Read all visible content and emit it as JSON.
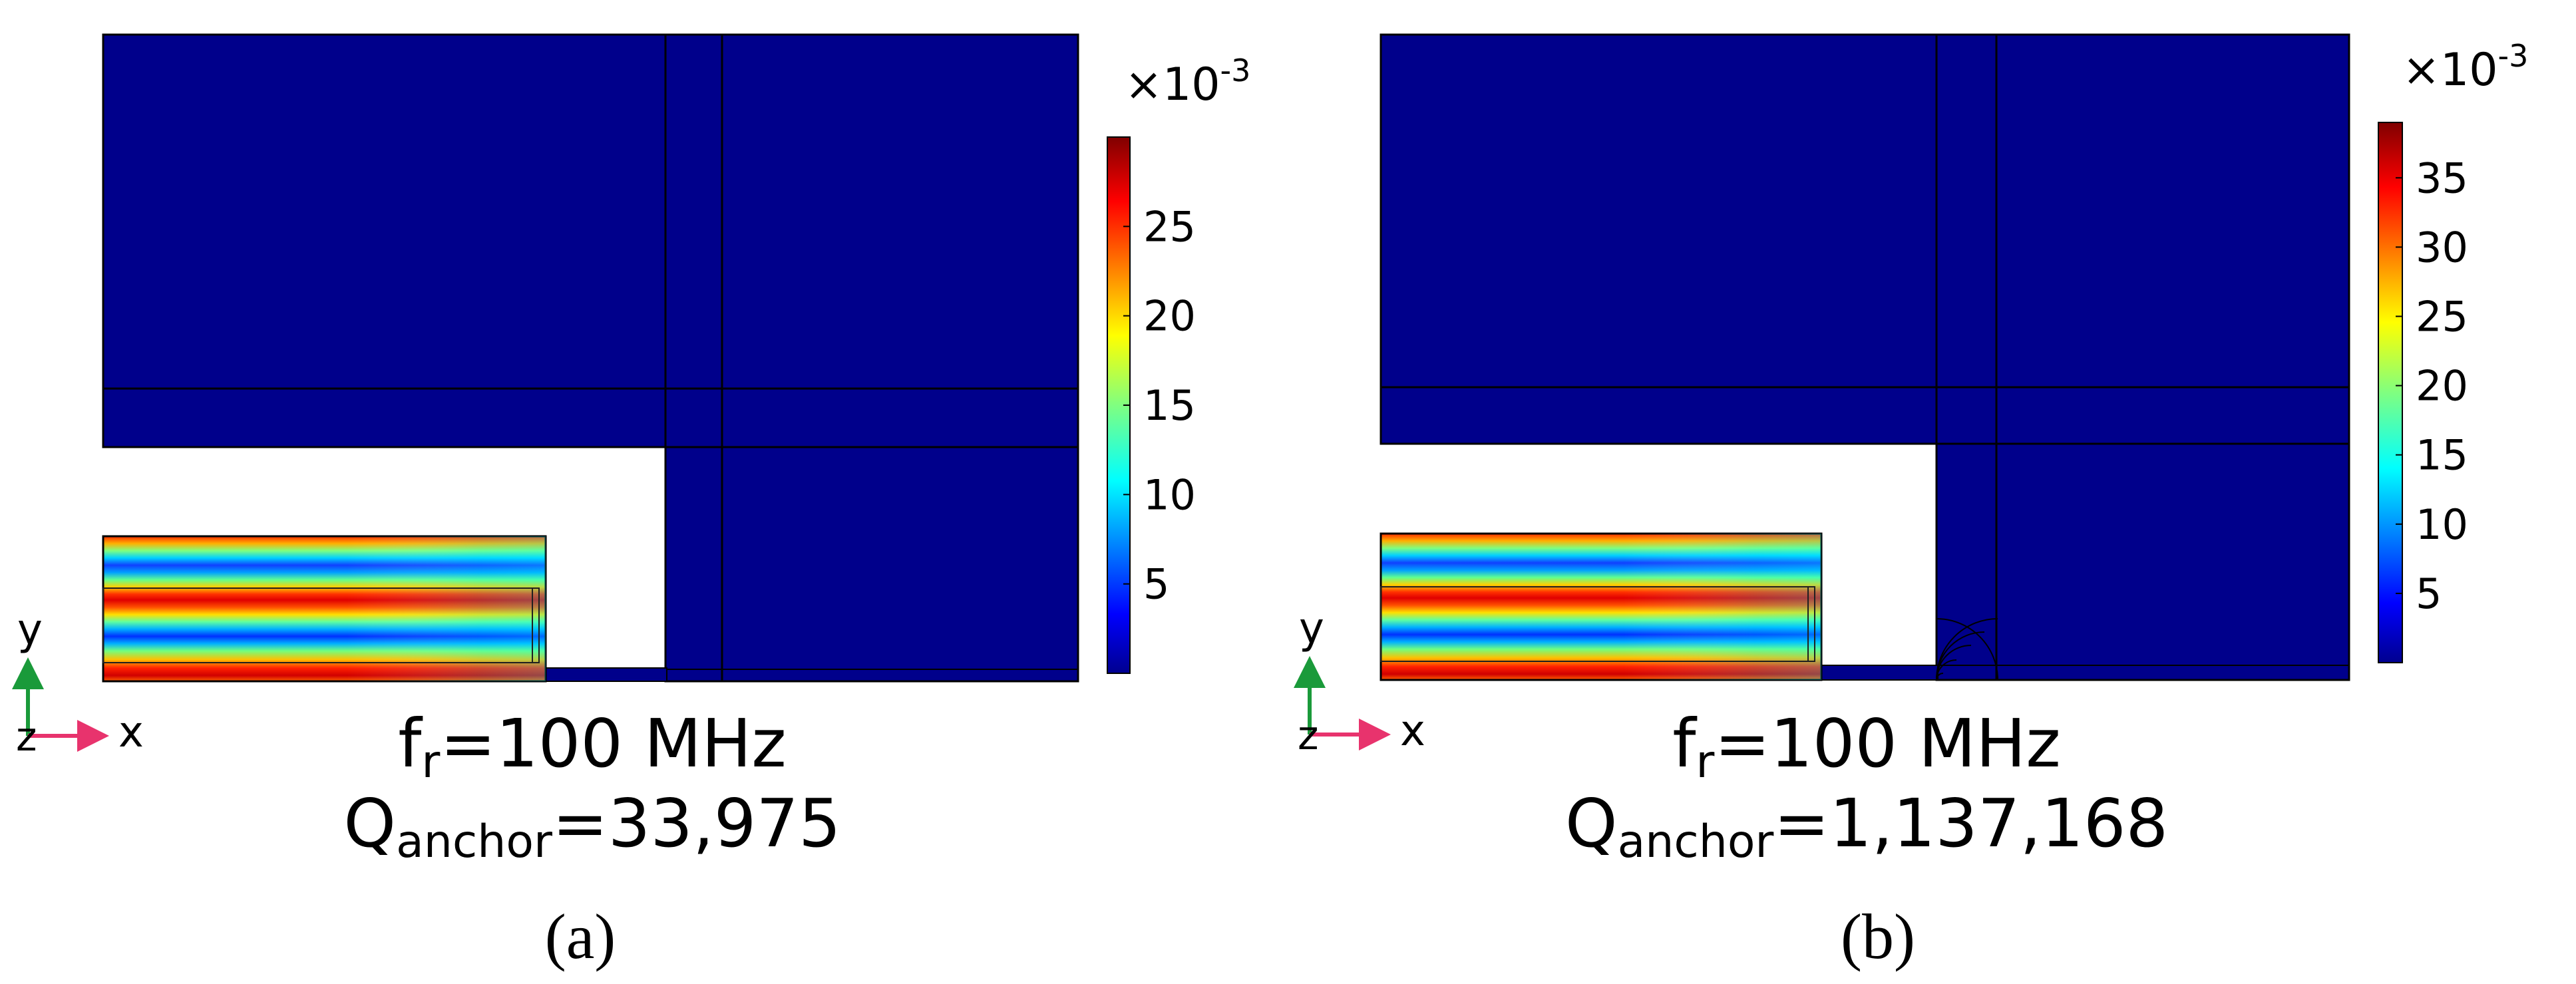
{
  "colors": {
    "background": "#ffffff",
    "domain_blue": "#00008b",
    "outline": "#000000",
    "colorbar_low": "#00008f",
    "colorbar_mid_cyan": "#00c8ff",
    "colorbar_mid_yellow": "#ffff00",
    "colorbar_high": "#8b0000",
    "axis_y": "#1a9a3a",
    "axis_x": "#e8336d"
  },
  "panels": [
    {
      "id": "a",
      "colorbar": {
        "exponent_label": "×10",
        "exponent_power": "-3",
        "max": 30,
        "ticks": [
          "5",
          "10",
          "15",
          "20",
          "25"
        ]
      },
      "axes": {
        "y": "y",
        "z": "z",
        "x": "x"
      },
      "freq": {
        "sym": "f",
        "sub": "r",
        "value": "=100 MHz"
      },
      "q": {
        "sym": "Q",
        "sub": "anchor",
        "value": "=33,975"
      },
      "label": "(a)",
      "pml_arcs": false
    },
    {
      "id": "b",
      "colorbar": {
        "exponent_label": "×10",
        "exponent_power": "-3",
        "max": 39,
        "ticks": [
          "5",
          "10",
          "15",
          "20",
          "25",
          "30",
          "35"
        ]
      },
      "axes": {
        "y": "y",
        "z": "z",
        "x": "x"
      },
      "freq": {
        "sym": "f",
        "sub": "r",
        "value": "=100 MHz"
      },
      "q": {
        "sym": "Q",
        "sub": "anchor",
        "value": "=1,137,168"
      },
      "label": "(b)",
      "pml_arcs": true
    }
  ]
}
